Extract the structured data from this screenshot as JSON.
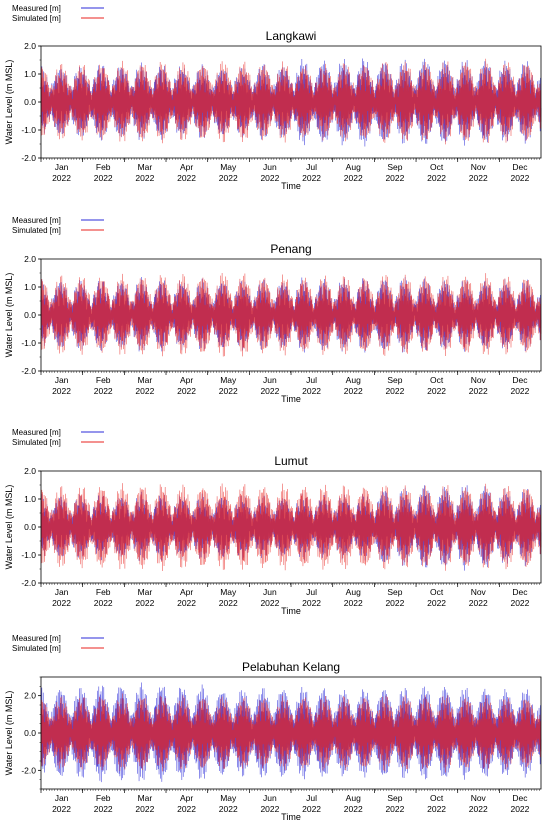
{
  "colors": {
    "measured": "#2b2bd9",
    "simulated": "#e8231f",
    "axis": "#000000"
  },
  "chart_data": [
    {
      "type": "line",
      "title": "Langkawi",
      "xlabel": "Time",
      "ylabel": "Water Level (m MSL)",
      "ylim": [
        -2.0,
        2.0
      ],
      "yticks": [
        "-2.0",
        "-1.0",
        "0.0",
        "1.0",
        "2.0"
      ],
      "xticks": [
        {
          "month": "Jan",
          "year": "2022"
        },
        {
          "month": "Feb",
          "year": "2022"
        },
        {
          "month": "Mar",
          "year": "2022"
        },
        {
          "month": "Apr",
          "year": "2022"
        },
        {
          "month": "May",
          "year": "2022"
        },
        {
          "month": "Jun",
          "year": "2022"
        },
        {
          "month": "Jul",
          "year": "2022"
        },
        {
          "month": "Aug",
          "year": "2022"
        },
        {
          "month": "Sep",
          "year": "2022"
        },
        {
          "month": "Oct",
          "year": "2022"
        },
        {
          "month": "Nov",
          "year": "2022"
        },
        {
          "month": "Dec",
          "year": "2022"
        }
      ],
      "legend": [
        "Measured [m]",
        "Simulated [m]"
      ],
      "legend_position": "top-left",
      "series": [
        {
          "name": "Measured [m]",
          "spring_amplitude": [
            1.2,
            1.3,
            1.3,
            1.25,
            1.2,
            1.3,
            1.45,
            1.5,
            1.45,
            1.5,
            1.45,
            1.4
          ],
          "neap_amplitude": 0.45
        },
        {
          "name": "Simulated [m]",
          "spring_amplitude": [
            1.3,
            1.35,
            1.4,
            1.35,
            1.4,
            1.35,
            1.3,
            1.35,
            1.4,
            1.4,
            1.45,
            1.4
          ],
          "neap_amplitude": 0.45
        }
      ]
    },
    {
      "type": "line",
      "title": "Penang",
      "xlabel": "Time",
      "ylabel": "Water Level (m MSL)",
      "ylim": [
        -2.0,
        2.0
      ],
      "yticks": [
        "-2.0",
        "-1.0",
        "0.0",
        "1.0",
        "2.0"
      ],
      "xticks": [
        {
          "month": "Jan",
          "year": "2022"
        },
        {
          "month": "Feb",
          "year": "2022"
        },
        {
          "month": "Mar",
          "year": "2022"
        },
        {
          "month": "Apr",
          "year": "2022"
        },
        {
          "month": "May",
          "year": "2022"
        },
        {
          "month": "Jun",
          "year": "2022"
        },
        {
          "month": "Jul",
          "year": "2022"
        },
        {
          "month": "Aug",
          "year": "2022"
        },
        {
          "month": "Sep",
          "year": "2022"
        },
        {
          "month": "Oct",
          "year": "2022"
        },
        {
          "month": "Nov",
          "year": "2022"
        },
        {
          "month": "Dec",
          "year": "2022"
        }
      ],
      "legend": [
        "Measured [m]",
        "Simulated [m]"
      ],
      "legend_position": "top-left",
      "series": [
        {
          "name": "Measured [m]",
          "spring_amplitude": [
            1.2,
            1.2,
            1.25,
            1.2,
            1.2,
            1.2,
            1.25,
            1.25,
            1.3,
            1.25,
            1.2,
            1.2
          ],
          "neap_amplitude": 0.35
        },
        {
          "name": "Simulated [m]",
          "spring_amplitude": [
            1.35,
            1.35,
            1.4,
            1.4,
            1.45,
            1.35,
            1.35,
            1.35,
            1.4,
            1.35,
            1.4,
            1.35
          ],
          "neap_amplitude": 0.4
        }
      ]
    },
    {
      "type": "line",
      "title": "Lumut",
      "xlabel": "Time",
      "ylabel": "Water Level (m MSL)",
      "ylim": [
        -2.0,
        2.0
      ],
      "yticks": [
        "-2.0",
        "-1.0",
        "0.0",
        "1.0",
        "2.0"
      ],
      "xticks": [
        {
          "month": "Jan",
          "year": "2022"
        },
        {
          "month": "Feb",
          "year": "2022"
        },
        {
          "month": "Mar",
          "year": "2022"
        },
        {
          "month": "Apr",
          "year": "2022"
        },
        {
          "month": "May",
          "year": "2022"
        },
        {
          "month": "Jun",
          "year": "2022"
        },
        {
          "month": "Jul",
          "year": "2022"
        },
        {
          "month": "Aug",
          "year": "2022"
        },
        {
          "month": "Sep",
          "year": "2022"
        },
        {
          "month": "Oct",
          "year": "2022"
        },
        {
          "month": "Nov",
          "year": "2022"
        },
        {
          "month": "Dec",
          "year": "2022"
        }
      ],
      "legend": [
        "Measured [m]",
        "Simulated [m]"
      ],
      "legend_position": "top-left",
      "series": [
        {
          "name": "Measured [m]",
          "spring_amplitude": [
            1.1,
            1.1,
            1.15,
            1.1,
            1.1,
            1.05,
            1.1,
            1.1,
            1.35,
            1.45,
            1.45,
            1.3
          ],
          "neap_amplitude": 0.4
        },
        {
          "name": "Simulated [m]",
          "spring_amplitude": [
            1.4,
            1.45,
            1.5,
            1.45,
            1.5,
            1.45,
            1.45,
            1.45,
            1.45,
            1.45,
            1.45,
            1.45
          ],
          "neap_amplitude": 0.45
        }
      ]
    },
    {
      "type": "line",
      "title": "Pelabuhan Kelang",
      "xlabel": "Time",
      "ylabel": "Water Level (m MSL)",
      "ylim": [
        -3.0,
        3.0
      ],
      "yticks": [
        "-2.0",
        "0.0",
        "2.0"
      ],
      "xticks": [
        {
          "month": "Jan",
          "year": "2022"
        },
        {
          "month": "Feb",
          "year": "2022"
        },
        {
          "month": "Mar",
          "year": "2022"
        },
        {
          "month": "Apr",
          "year": "2022"
        },
        {
          "month": "May",
          "year": "2022"
        },
        {
          "month": "Jun",
          "year": "2022"
        },
        {
          "month": "Jul",
          "year": "2022"
        },
        {
          "month": "Aug",
          "year": "2022"
        },
        {
          "month": "Sep",
          "year": "2022"
        },
        {
          "month": "Oct",
          "year": "2022"
        },
        {
          "month": "Nov",
          "year": "2022"
        },
        {
          "month": "Dec",
          "year": "2022"
        }
      ],
      "legend": [
        "Measured [m]",
        "Simulated [m]"
      ],
      "legend_position": "top-left",
      "series": [
        {
          "name": "Measured [m]",
          "spring_amplitude": [
            2.4,
            2.6,
            2.6,
            2.5,
            2.3,
            2.4,
            2.4,
            2.3,
            2.4,
            2.5,
            2.4,
            2.3
          ],
          "neap_amplitude": 0.8
        },
        {
          "name": "Simulated [m]",
          "spring_amplitude": [
            1.9,
            2.0,
            2.0,
            1.95,
            1.9,
            1.9,
            1.95,
            1.95,
            2.0,
            2.0,
            1.95,
            1.9
          ],
          "neap_amplitude": 0.7
        }
      ]
    }
  ]
}
